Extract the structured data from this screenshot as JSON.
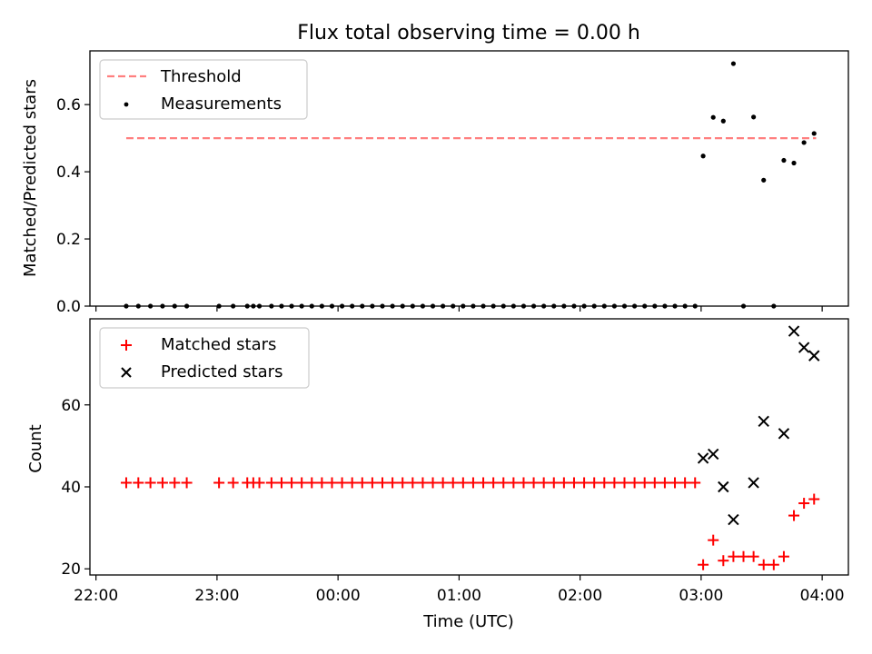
{
  "chart_data": [
    {
      "type": "scatter",
      "panel": "top",
      "title": "Flux total observing time = 0.00 h",
      "xlabel": "",
      "ylabel": "Matched/Predicted stars",
      "xlim": [
        "21:57",
        "04:13"
      ],
      "ylim": [
        0,
        0.76
      ],
      "yticks": [
        0.0,
        0.2,
        0.4,
        0.6
      ],
      "ytick_labels": [
        "0.0",
        "0.2",
        "0.4",
        "0.6"
      ],
      "grid": false,
      "legend_position": "upper left",
      "series": [
        {
          "name": "Threshold",
          "kind": "line",
          "style": "dashed",
          "color": "#ff7f7f",
          "x": [
            "22:15",
            "03:57"
          ],
          "y": [
            0.5,
            0.5
          ]
        },
        {
          "name": "Measurements",
          "kind": "scatter",
          "marker": "dot",
          "color": "#000000",
          "points": [
            [
              "22:15",
              0.0
            ],
            [
              "22:21",
              0.0
            ],
            [
              "22:27",
              0.0
            ],
            [
              "22:33",
              0.0
            ],
            [
              "22:39",
              0.0
            ],
            [
              "22:45",
              0.0
            ],
            [
              "23:01",
              0.0
            ],
            [
              "23:08",
              0.0
            ],
            [
              "23:15",
              0.0
            ],
            [
              "23:18",
              0.0
            ],
            [
              "23:21",
              0.0
            ],
            [
              "23:27",
              0.0
            ],
            [
              "23:32",
              0.0
            ],
            [
              "23:37",
              0.0
            ],
            [
              "23:42",
              0.0
            ],
            [
              "23:47",
              0.0
            ],
            [
              "23:52",
              0.0
            ],
            [
              "23:57",
              0.0
            ],
            [
              "00:02",
              0.0
            ],
            [
              "00:07",
              0.0
            ],
            [
              "00:12",
              0.0
            ],
            [
              "00:17",
              0.0
            ],
            [
              "00:22",
              0.0
            ],
            [
              "00:27",
              0.0
            ],
            [
              "00:32",
              0.0
            ],
            [
              "00:37",
              0.0
            ],
            [
              "00:42",
              0.0
            ],
            [
              "00:47",
              0.0
            ],
            [
              "00:52",
              0.0
            ],
            [
              "00:57",
              0.0
            ],
            [
              "01:02",
              0.0
            ],
            [
              "01:07",
              0.0
            ],
            [
              "01:12",
              0.0
            ],
            [
              "01:17",
              0.0
            ],
            [
              "01:22",
              0.0
            ],
            [
              "01:27",
              0.0
            ],
            [
              "01:32",
              0.0
            ],
            [
              "01:37",
              0.0
            ],
            [
              "01:42",
              0.0
            ],
            [
              "01:47",
              0.0
            ],
            [
              "01:52",
              0.0
            ],
            [
              "01:57",
              0.0
            ],
            [
              "02:02",
              0.0
            ],
            [
              "02:07",
              0.0
            ],
            [
              "02:12",
              0.0
            ],
            [
              "02:17",
              0.0
            ],
            [
              "02:22",
              0.0
            ],
            [
              "02:27",
              0.0
            ],
            [
              "02:32",
              0.0
            ],
            [
              "02:37",
              0.0
            ],
            [
              "02:42",
              0.0
            ],
            [
              "02:47",
              0.0
            ],
            [
              "02:52",
              0.0
            ],
            [
              "02:57",
              0.0
            ],
            [
              "03:01",
              0.447
            ],
            [
              "03:06",
              0.562
            ],
            [
              "03:11",
              0.551
            ],
            [
              "03:16",
              0.722
            ],
            [
              "03:21",
              0.0
            ],
            [
              "03:26",
              0.563
            ],
            [
              "03:31",
              0.375
            ],
            [
              "03:36",
              0.0
            ],
            [
              "03:41",
              0.434
            ],
            [
              "03:46",
              0.426
            ],
            [
              "03:51",
              0.487
            ],
            [
              "03:56",
              0.514
            ]
          ]
        }
      ]
    },
    {
      "type": "scatter",
      "panel": "bottom",
      "title": "",
      "xlabel": "Time (UTC)",
      "ylabel": "Count",
      "xlim": [
        "21:57",
        "04:13"
      ],
      "ylim": [
        18.5,
        81
      ],
      "yticks": [
        20,
        40,
        60
      ],
      "ytick_labels": [
        "20",
        "40",
        "60"
      ],
      "xticks": [
        "22:00",
        "23:00",
        "00:00",
        "01:00",
        "02:00",
        "03:00",
        "04:00"
      ],
      "xtick_labels": [
        "22:00",
        "23:00",
        "00:00",
        "01:00",
        "02:00",
        "03:00",
        "04:00"
      ],
      "grid": false,
      "legend_position": "upper left",
      "series": [
        {
          "name": "Matched stars",
          "kind": "scatter",
          "marker": "plus",
          "color": "#ff0000",
          "points": [
            [
              "22:15",
              41
            ],
            [
              "22:21",
              41
            ],
            [
              "22:27",
              41
            ],
            [
              "22:33",
              41
            ],
            [
              "22:39",
              41
            ],
            [
              "22:45",
              41
            ],
            [
              "23:01",
              41
            ],
            [
              "23:08",
              41
            ],
            [
              "23:15",
              41
            ],
            [
              "23:18",
              41
            ],
            [
              "23:21",
              41
            ],
            [
              "23:27",
              41
            ],
            [
              "23:32",
              41
            ],
            [
              "23:37",
              41
            ],
            [
              "23:42",
              41
            ],
            [
              "23:47",
              41
            ],
            [
              "23:52",
              41
            ],
            [
              "23:57",
              41
            ],
            [
              "00:02",
              41
            ],
            [
              "00:07",
              41
            ],
            [
              "00:12",
              41
            ],
            [
              "00:17",
              41
            ],
            [
              "00:22",
              41
            ],
            [
              "00:27",
              41
            ],
            [
              "00:32",
              41
            ],
            [
              "00:37",
              41
            ],
            [
              "00:42",
              41
            ],
            [
              "00:47",
              41
            ],
            [
              "00:52",
              41
            ],
            [
              "00:57",
              41
            ],
            [
              "01:02",
              41
            ],
            [
              "01:07",
              41
            ],
            [
              "01:12",
              41
            ],
            [
              "01:17",
              41
            ],
            [
              "01:22",
              41
            ],
            [
              "01:27",
              41
            ],
            [
              "01:32",
              41
            ],
            [
              "01:37",
              41
            ],
            [
              "01:42",
              41
            ],
            [
              "01:47",
              41
            ],
            [
              "01:52",
              41
            ],
            [
              "01:57",
              41
            ],
            [
              "02:02",
              41
            ],
            [
              "02:07",
              41
            ],
            [
              "02:12",
              41
            ],
            [
              "02:17",
              41
            ],
            [
              "02:22",
              41
            ],
            [
              "02:27",
              41
            ],
            [
              "02:32",
              41
            ],
            [
              "02:37",
              41
            ],
            [
              "02:42",
              41
            ],
            [
              "02:47",
              41
            ],
            [
              "02:52",
              41
            ],
            [
              "02:57",
              41
            ],
            [
              "03:01",
              21
            ],
            [
              "03:06",
              27
            ],
            [
              "03:11",
              22
            ],
            [
              "03:16",
              23
            ],
            [
              "03:21",
              23
            ],
            [
              "03:26",
              23
            ],
            [
              "03:31",
              21
            ],
            [
              "03:36",
              21
            ],
            [
              "03:41",
              23
            ],
            [
              "03:46",
              33
            ],
            [
              "03:51",
              36
            ],
            [
              "03:56",
              37
            ]
          ]
        },
        {
          "name": "Predicted stars",
          "kind": "scatter",
          "marker": "x",
          "color": "#000000",
          "points": [
            [
              "03:01",
              47
            ],
            [
              "03:06",
              48
            ],
            [
              "03:11",
              40
            ],
            [
              "03:16",
              32
            ],
            [
              "03:26",
              41
            ],
            [
              "03:31",
              56
            ],
            [
              "03:41",
              53
            ],
            [
              "03:46",
              78
            ],
            [
              "03:51",
              74
            ],
            [
              "03:56",
              72
            ]
          ]
        }
      ]
    }
  ]
}
